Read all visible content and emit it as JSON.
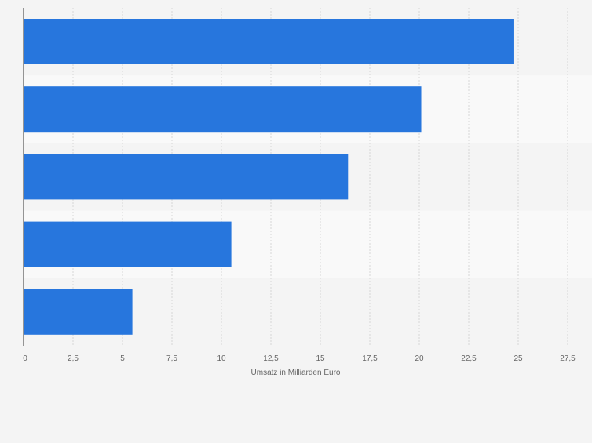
{
  "chart_data": {
    "type": "bar",
    "orientation": "horizontal",
    "title": "",
    "categories": [
      "",
      "",
      "",
      "",
      ""
    ],
    "values": [
      24.8,
      20.1,
      16.4,
      10.5,
      5.5
    ],
    "xlabel": "Umsatz in Milliarden Euro",
    "ylabel": "",
    "xlim": [
      0,
      27.5
    ],
    "xticks": [
      0,
      2.5,
      5,
      7.5,
      10,
      12.5,
      15,
      17.5,
      20,
      22.5,
      25,
      27.5
    ],
    "xtick_labels": [
      "0",
      "2,5",
      "5",
      "7,5",
      "10",
      "12,5",
      "15",
      "17,5",
      "20",
      "22,5",
      "25",
      "27,5"
    ],
    "grid": true,
    "colors": {
      "bar": "#2776dd",
      "band_a": "#f4f4f4",
      "band_b": "#f9f9f9",
      "grid": "#d6d6d6",
      "axis": "#333333",
      "text": "#666666"
    }
  }
}
